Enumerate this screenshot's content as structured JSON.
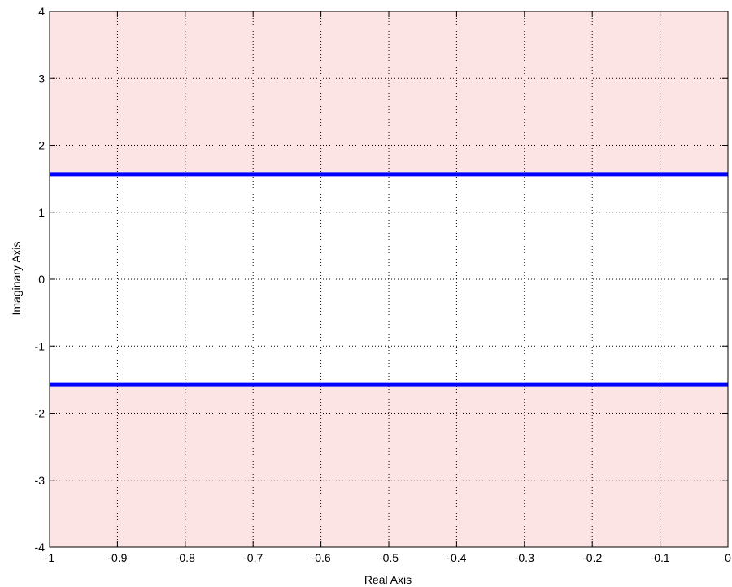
{
  "chart_data": {
    "type": "line",
    "title": "",
    "xlabel": "Real Axis",
    "ylabel": "Imaginary Axis",
    "xlim": [
      -1,
      0
    ],
    "ylim": [
      -4,
      4
    ],
    "xticks": [
      -1,
      -0.9,
      -0.8,
      -0.7,
      -0.6,
      -0.5,
      -0.4,
      -0.3,
      -0.2,
      -0.1,
      0
    ],
    "xtick_labels": [
      "-1",
      "-0.9",
      "-0.8",
      "-0.7",
      "-0.6",
      "-0.5",
      "-0.4",
      "-0.3",
      "-0.2",
      "-0.1",
      "0"
    ],
    "yticks": [
      -4,
      -3,
      -2,
      -1,
      0,
      1,
      2,
      3,
      4
    ],
    "ytick_labels": [
      "-4",
      "-3",
      "-2",
      "-1",
      "0",
      "1",
      "2",
      "3",
      "4"
    ],
    "grid": true,
    "shaded_regions": [
      {
        "y_range": [
          1.57,
          4
        ],
        "color": "#fce4e4"
      },
      {
        "y_range": [
          -4,
          -1.57
        ],
        "color": "#fce4e4"
      }
    ],
    "series": [
      {
        "x": [
          -1,
          0
        ],
        "y": [
          1.57,
          1.57
        ],
        "color": "#0000ff"
      },
      {
        "x": [
          -1,
          0
        ],
        "y": [
          -1.57,
          -1.57
        ],
        "color": "#0000ff"
      }
    ]
  }
}
